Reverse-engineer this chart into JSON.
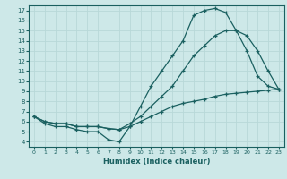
{
  "xlabel": "Humidex (Indice chaleur)",
  "bg_color": "#cde8e8",
  "line_color": "#1a6060",
  "grid_color": "#b8d8d8",
  "xlim": [
    -0.5,
    23.5
  ],
  "ylim": [
    3.5,
    17.5
  ],
  "xticks": [
    0,
    1,
    2,
    3,
    4,
    5,
    6,
    7,
    8,
    9,
    10,
    11,
    12,
    13,
    14,
    15,
    16,
    17,
    18,
    19,
    20,
    21,
    22,
    23
  ],
  "yticks": [
    4,
    5,
    6,
    7,
    8,
    9,
    10,
    11,
    12,
    13,
    14,
    15,
    16,
    17
  ],
  "line1_x": [
    0,
    1,
    2,
    3,
    4,
    5,
    6,
    7,
    8,
    9,
    10,
    11,
    12,
    13,
    14,
    15,
    16,
    17,
    18,
    19,
    20,
    21,
    22,
    23
  ],
  "line1_y": [
    6.5,
    5.8,
    5.5,
    5.5,
    5.2,
    5.0,
    5.0,
    4.2,
    4.0,
    5.5,
    7.5,
    9.5,
    11.0,
    12.5,
    14.0,
    16.5,
    17.0,
    17.2,
    16.8,
    15.0,
    13.0,
    10.5,
    9.5,
    9.2
  ],
  "line2_x": [
    0,
    1,
    2,
    3,
    4,
    5,
    6,
    7,
    8,
    9,
    10,
    11,
    12,
    13,
    14,
    15,
    16,
    17,
    18,
    19,
    20,
    21,
    22,
    23
  ],
  "line2_y": [
    6.5,
    6.0,
    5.8,
    5.8,
    5.5,
    5.5,
    5.5,
    5.3,
    5.2,
    5.8,
    6.5,
    7.5,
    8.5,
    9.5,
    11.0,
    12.5,
    13.5,
    14.5,
    15.0,
    15.0,
    14.5,
    13.0,
    11.0,
    9.2
  ],
  "line3_x": [
    0,
    1,
    2,
    3,
    4,
    5,
    6,
    7,
    8,
    9,
    10,
    11,
    12,
    13,
    14,
    15,
    16,
    17,
    18,
    19,
    20,
    21,
    22,
    23
  ],
  "line3_y": [
    6.5,
    6.0,
    5.8,
    5.8,
    5.5,
    5.5,
    5.5,
    5.3,
    5.2,
    5.5,
    6.0,
    6.5,
    7.0,
    7.5,
    7.8,
    8.0,
    8.2,
    8.5,
    8.7,
    8.8,
    8.9,
    9.0,
    9.1,
    9.2
  ]
}
